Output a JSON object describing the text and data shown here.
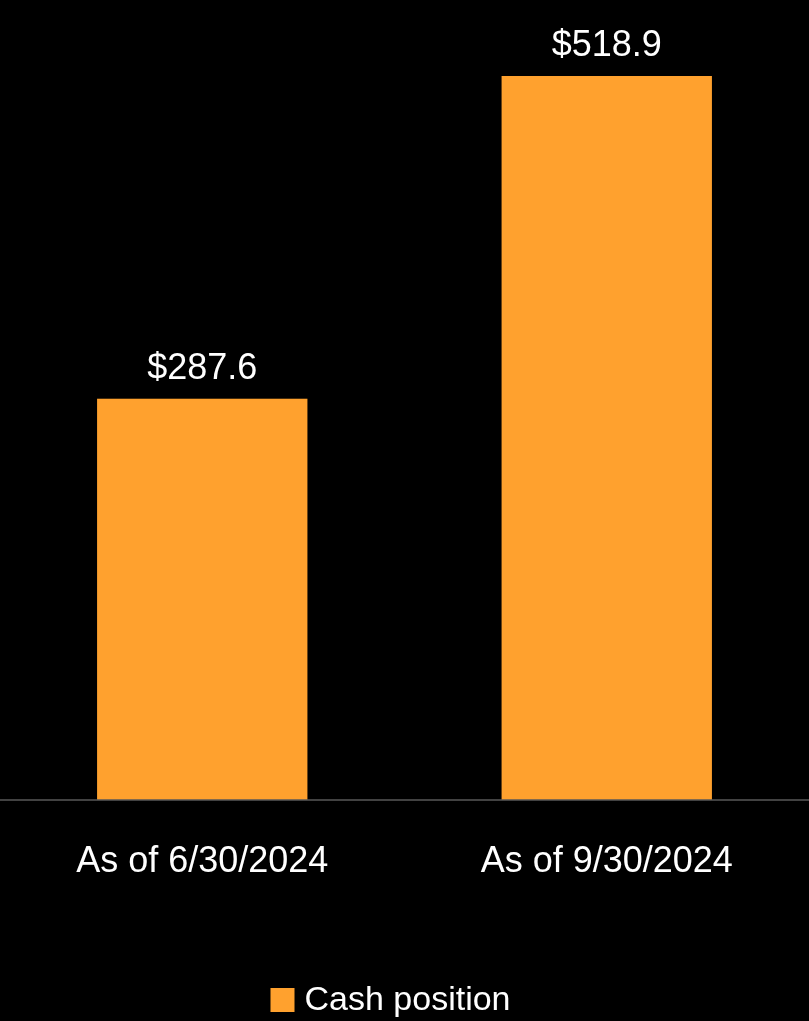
{
  "chart_data": {
    "type": "bar",
    "categories": [
      "As of 6/30/2024",
      "As of 9/30/2024"
    ],
    "series": [
      {
        "name": "Cash position",
        "color": "#ffa12e",
        "values": [
          287.6,
          518.9
        ],
        "value_labels": [
          "$287.6",
          "$518.9"
        ]
      }
    ],
    "legend": "bottom"
  }
}
